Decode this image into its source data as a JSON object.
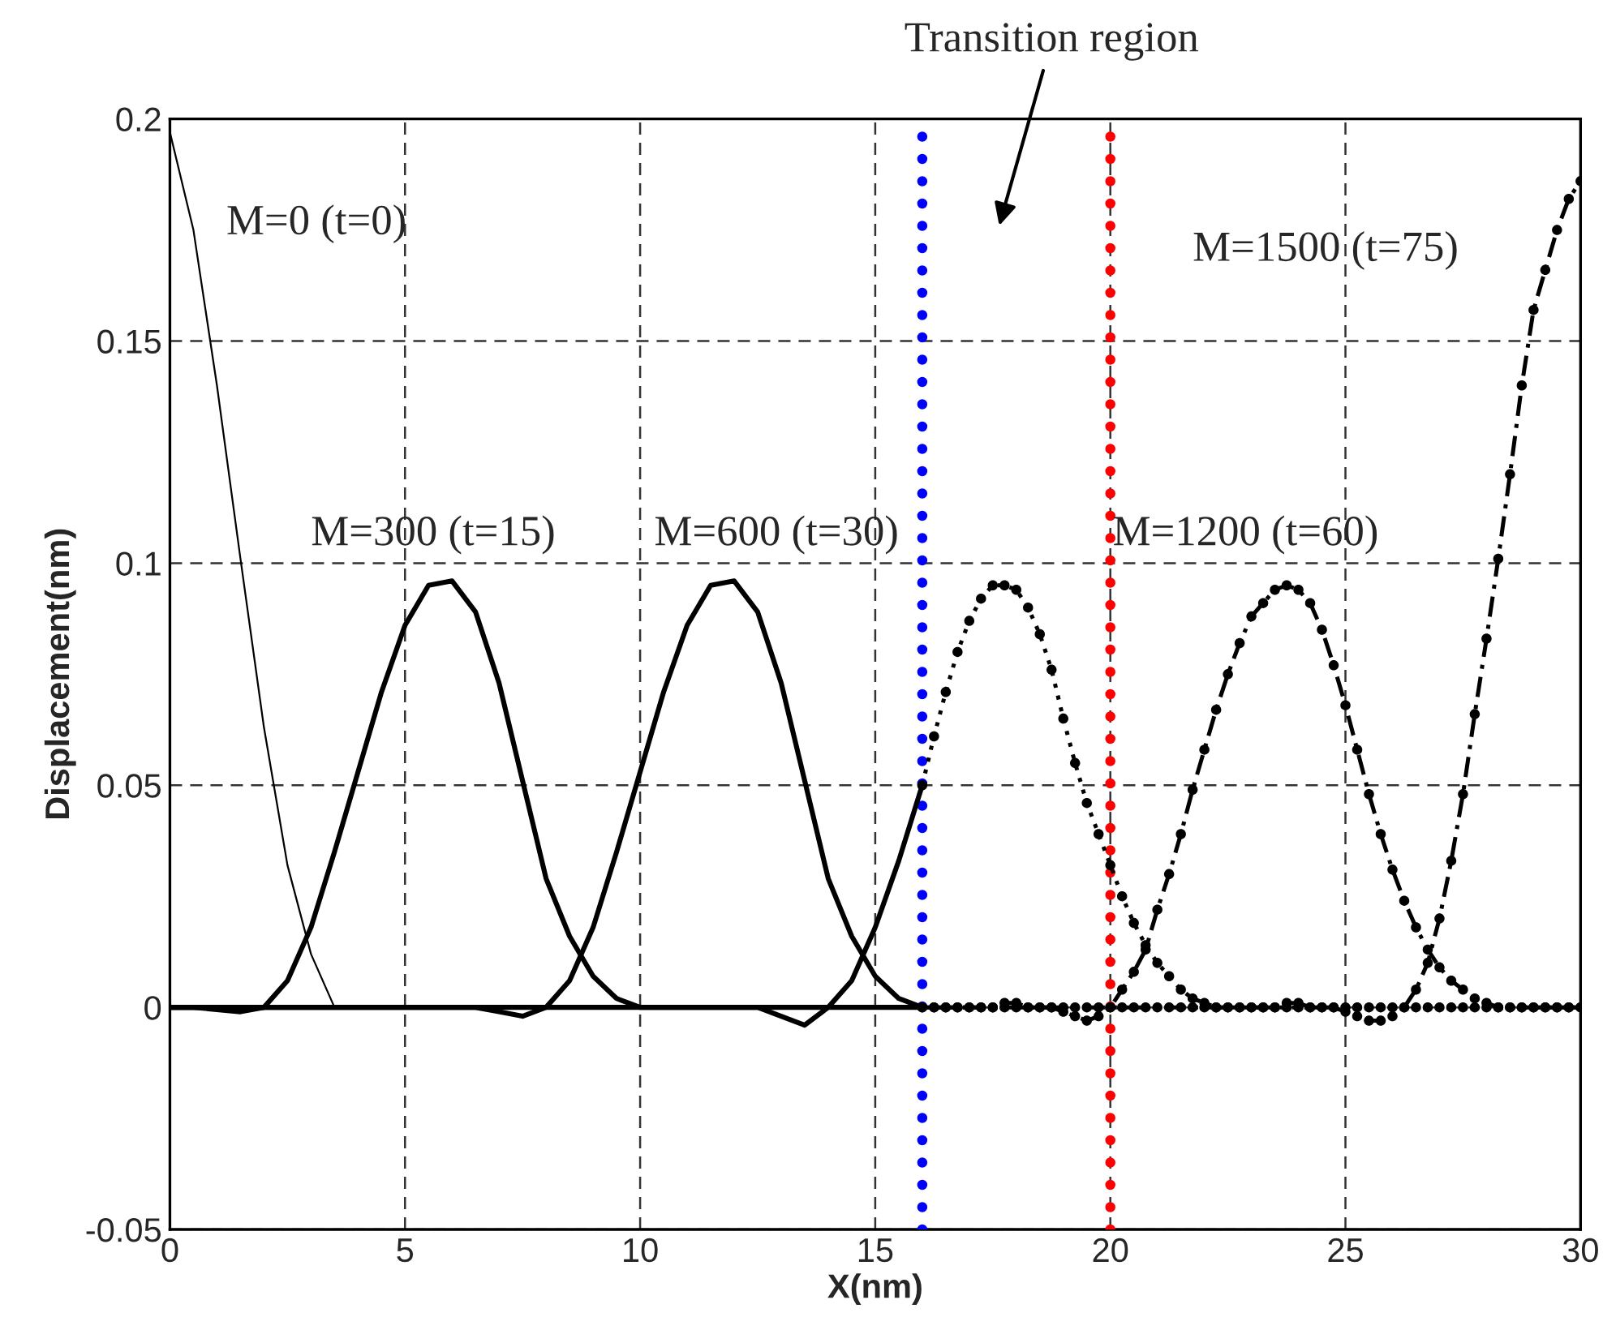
{
  "chart_data": {
    "type": "line",
    "xlabel": "X(nm)",
    "ylabel": "Displacement(nm)",
    "xlim": [
      0,
      30
    ],
    "ylim": [
      -0.05,
      0.2
    ],
    "xticks": [
      0,
      5,
      10,
      15,
      20,
      25,
      30
    ],
    "yticks": [
      -0.05,
      0,
      0.05,
      0.1,
      0.15,
      0.2
    ],
    "grid": true,
    "legend": false,
    "annotations": [
      "Transition region"
    ],
    "ref_lines": [
      {
        "axis": "x",
        "value": 16,
        "color": "#0000ff",
        "line_style": "dotted"
      },
      {
        "axis": "x",
        "value": 20,
        "color": "#ff0000",
        "line_style": "dotted"
      }
    ],
    "series": [
      {
        "name": "M=0 (t=0)",
        "color": "#000000",
        "line_style": "solid",
        "marker": "none",
        "x": [
          0,
          0.5,
          1.0,
          1.5,
          2.0,
          2.5,
          3.0,
          3.5,
          4.0,
          6.0,
          8.0,
          10.0,
          12.0,
          14.0,
          16.0
        ],
        "values": [
          0.197,
          0.175,
          0.14,
          0.101,
          0.063,
          0.032,
          0.012,
          0.0,
          0.0,
          0.0,
          0.0,
          0.0,
          0.0,
          0.0,
          0.0
        ]
      },
      {
        "name": "M=300 (t=15)",
        "color": "#000000",
        "line_style": "solid",
        "marker": "none",
        "x": [
          0,
          0.5,
          1.0,
          1.5,
          2.0,
          2.5,
          3.0,
          3.5,
          4.0,
          4.5,
          5.0,
          5.5,
          6.0,
          6.5,
          7.0,
          7.5,
          8.0,
          8.5,
          9.0,
          9.5,
          10.0,
          11.0,
          12.0,
          13.0,
          14.0,
          15.0,
          16.0
        ],
        "values": [
          0.0,
          0.0,
          -0.0005,
          -0.001,
          0.0,
          0.006,
          0.018,
          0.035,
          0.053,
          0.071,
          0.086,
          0.095,
          0.096,
          0.089,
          0.073,
          0.051,
          0.029,
          0.016,
          0.007,
          0.002,
          0.0,
          0.0,
          0.0,
          0.0,
          0.0,
          0.0,
          0.0
        ]
      },
      {
        "name": "M=600 (t=30)",
        "color": "#000000",
        "line_style": "solid",
        "marker": "none",
        "x": [
          0,
          1.0,
          2.0,
          3.0,
          4.0,
          5.0,
          6.0,
          6.5,
          7.0,
          7.5,
          8.0,
          8.5,
          9.0,
          9.5,
          10.0,
          10.5,
          11.0,
          11.5,
          12.0,
          12.5,
          13.0,
          13.5,
          14.0,
          14.5,
          15.0,
          15.5,
          16.0
        ],
        "values": [
          0.0,
          0.0,
          0.0,
          0.0,
          0.0,
          0.0,
          0.0,
          0.0,
          -0.001,
          -0.002,
          0.0,
          0.006,
          0.018,
          0.035,
          0.053,
          0.071,
          0.086,
          0.095,
          0.096,
          0.089,
          0.073,
          0.051,
          0.029,
          0.016,
          0.007,
          0.002,
          0.0
        ]
      },
      {
        "color": "#000000",
        "line_style": "solid",
        "marker": "none",
        "x": [
          0,
          2.0,
          4.0,
          6.0,
          8.0,
          10.0,
          12.0,
          12.5,
          13.0,
          13.5,
          14.0,
          14.5,
          15.0,
          15.5,
          16.0
        ],
        "values": [
          0.0,
          0.0,
          0.0,
          0.0,
          0.0,
          0.0,
          0.0,
          0.0,
          -0.002,
          -0.004,
          0.0,
          0.006,
          0.018,
          0.033,
          0.05
        ]
      },
      {
        "color": "#000000",
        "line_style": "dotted",
        "marker": "circle",
        "x": [
          16,
          16.25,
          16.5,
          16.75,
          17,
          17.25,
          17.5,
          17.75,
          18,
          18.25,
          18.5,
          18.75,
          19,
          19.25,
          19.5,
          19.75,
          20,
          20.25,
          20.5,
          20.75,
          21,
          21.25,
          21.5,
          21.75,
          22,
          22.25,
          22.5,
          22.75,
          23,
          23.25,
          23.5,
          23.75,
          24,
          24.25,
          24.5,
          24.75,
          25,
          25.25,
          25.5,
          25.75,
          26,
          26.25,
          26.5,
          26.75,
          27,
          27.25,
          27.5,
          27.75,
          28,
          28.25,
          28.5,
          28.75,
          29,
          29.25,
          29.5,
          29.75,
          30
        ],
        "values": [
          0.05,
          0.061,
          0.071,
          0.08,
          0.087,
          0.092,
          0.095,
          0.095,
          0.094,
          0.09,
          0.084,
          0.076,
          0.065,
          0.055,
          0.046,
          0.039,
          0.032,
          0.025,
          0.019,
          0.014,
          0.01,
          0.007,
          0.004,
          0.002,
          0.001,
          0.0,
          0.0,
          0.0,
          0.0,
          0.0,
          0.0,
          0.0,
          0.0,
          0.0,
          0.0,
          0.0,
          0.0,
          0.0,
          0.0,
          0.0,
          0.0,
          0.0,
          0.0,
          0.0,
          0.0,
          0.0,
          0.0,
          0.0,
          0.0,
          0.0,
          0.0,
          0.0,
          0.0,
          0.0,
          0.0,
          0.0,
          0.0
        ]
      },
      {
        "name": "M=1200 (t=60)",
        "color": "#000000",
        "line_style": "dashed",
        "marker": "circle",
        "x": [
          16,
          16.25,
          16.5,
          16.75,
          17,
          17.25,
          17.5,
          17.75,
          18,
          18.25,
          18.5,
          18.75,
          19,
          19.25,
          19.5,
          19.75,
          20,
          20.25,
          20.5,
          20.75,
          21,
          21.25,
          21.5,
          21.75,
          22,
          22.25,
          22.5,
          22.75,
          23,
          23.25,
          23.5,
          23.75,
          24,
          24.25,
          24.5,
          24.75,
          25,
          25.25,
          25.5,
          25.75,
          26,
          26.25,
          26.5,
          26.75,
          27,
          27.25,
          27.5,
          27.75,
          28,
          28.25,
          28.5,
          28.75,
          29,
          29.25,
          29.5,
          29.75,
          30
        ],
        "values": [
          0.0,
          0.0,
          0.0,
          0.0,
          0.0,
          0.0,
          0.0,
          0.001,
          0.001,
          0.0,
          0.0,
          0.0,
          -0.001,
          -0.002,
          -0.003,
          -0.002,
          0.0,
          0.004,
          0.008,
          0.013,
          0.022,
          0.03,
          0.039,
          0.049,
          0.058,
          0.067,
          0.075,
          0.082,
          0.088,
          0.091,
          0.094,
          0.095,
          0.094,
          0.091,
          0.085,
          0.077,
          0.068,
          0.058,
          0.048,
          0.039,
          0.031,
          0.024,
          0.018,
          0.013,
          0.009,
          0.006,
          0.004,
          0.002,
          0.001,
          0.0,
          0.0,
          0.0,
          0.0,
          0.0,
          0.0,
          0.0,
          0.0
        ]
      },
      {
        "name": "M=1500 (t=75)",
        "color": "#000000",
        "line_style": "dashed",
        "marker": "circle",
        "x": [
          16,
          16.25,
          16.5,
          16.75,
          17,
          17.25,
          17.5,
          17.75,
          18,
          18.25,
          18.5,
          18.75,
          19,
          19.25,
          19.5,
          19.75,
          20,
          20.25,
          20.5,
          20.75,
          21,
          21.25,
          21.5,
          21.75,
          22,
          22.25,
          22.5,
          22.75,
          23,
          23.25,
          23.5,
          23.75,
          24,
          24.25,
          24.5,
          24.75,
          25,
          25.25,
          25.5,
          25.75,
          26,
          26.25,
          26.5,
          26.75,
          27,
          27.25,
          27.5,
          27.75,
          28,
          28.25,
          28.5,
          28.75,
          29,
          29.25,
          29.5,
          29.75,
          30
        ],
        "values": [
          0.0,
          0.0,
          0.0,
          0.0,
          0.0,
          0.0,
          0.0,
          0.0,
          0.0,
          0.0,
          0.0,
          0.0,
          0.0,
          0.0,
          0.0,
          0.0,
          0.0,
          0.0,
          0.0,
          0.0,
          0.0,
          0.0,
          0.0,
          0.0,
          0.0,
          0.0,
          0.0,
          0.0,
          0.0,
          0.0,
          0.0,
          0.001,
          0.001,
          0.0,
          0.0,
          0.0,
          -0.001,
          -0.002,
          -0.003,
          -0.003,
          -0.002,
          0.0,
          0.004,
          0.01,
          0.02,
          0.033,
          0.048,
          0.066,
          0.083,
          0.101,
          0.12,
          0.14,
          0.157,
          0.166,
          0.175,
          0.182,
          0.186
        ]
      }
    ]
  }
}
